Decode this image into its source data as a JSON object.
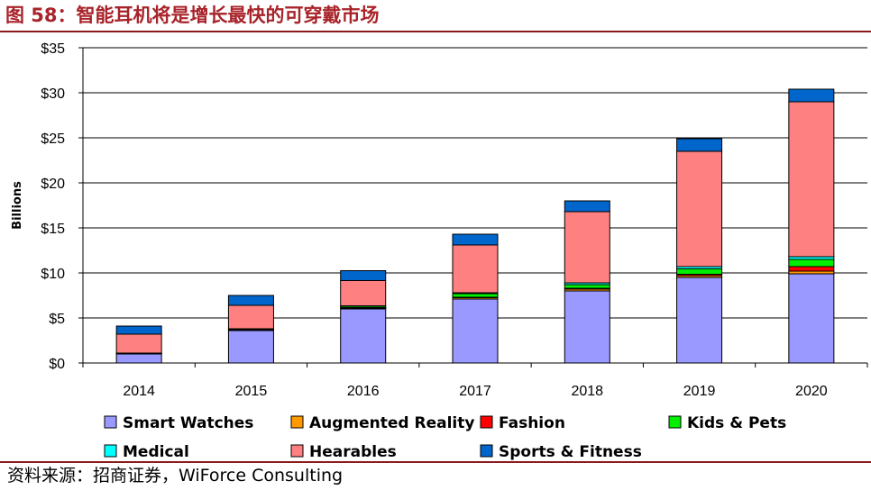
{
  "figure": {
    "title": "图 58：智能耳机将是增长最快的可穿戴市场",
    "source": "资料来源：招商证券，WiForce Consulting"
  },
  "chart_data": {
    "type": "bar",
    "stacked": true,
    "categories": [
      "2014",
      "2015",
      "2016",
      "2017",
      "2018",
      "2019",
      "2020"
    ],
    "ylabel": "Billions",
    "ylim": [
      0,
      35
    ],
    "yticks": [
      0,
      5,
      10,
      15,
      20,
      25,
      30,
      35
    ],
    "ytick_labels": [
      "$0",
      "$5",
      "$10",
      "$15",
      "$20",
      "$25",
      "$30",
      "$35"
    ],
    "grid": true,
    "legend_position": "bottom",
    "series": [
      {
        "name": "Smart Watches",
        "color": "#9999ff",
        "values": [
          1.0,
          3.6,
          6.0,
          7.1,
          8.0,
          9.5,
          9.9
        ]
      },
      {
        "name": "Augmented Reality",
        "color": "#ff9900",
        "values": [
          0.05,
          0.1,
          0.1,
          0.15,
          0.2,
          0.2,
          0.3
        ]
      },
      {
        "name": "Fashion",
        "color": "#ff0000",
        "values": [
          0.0,
          0.0,
          0.05,
          0.05,
          0.1,
          0.15,
          0.5
        ]
      },
      {
        "name": "Kids & Pets",
        "color": "#00ee00",
        "values": [
          0.05,
          0.1,
          0.15,
          0.4,
          0.4,
          0.6,
          0.8
        ]
      },
      {
        "name": "Medical",
        "color": "#00ffff",
        "values": [
          0.0,
          0.0,
          0.05,
          0.1,
          0.2,
          0.25,
          0.3
        ]
      },
      {
        "name": "Hearables",
        "color": "#ff8080",
        "values": [
          2.1,
          2.6,
          2.8,
          5.3,
          7.9,
          12.8,
          17.2
        ]
      },
      {
        "name": "Sports & Fitness",
        "color": "#0066cc",
        "values": [
          0.9,
          1.1,
          1.1,
          1.2,
          1.2,
          1.4,
          1.4
        ]
      }
    ]
  }
}
